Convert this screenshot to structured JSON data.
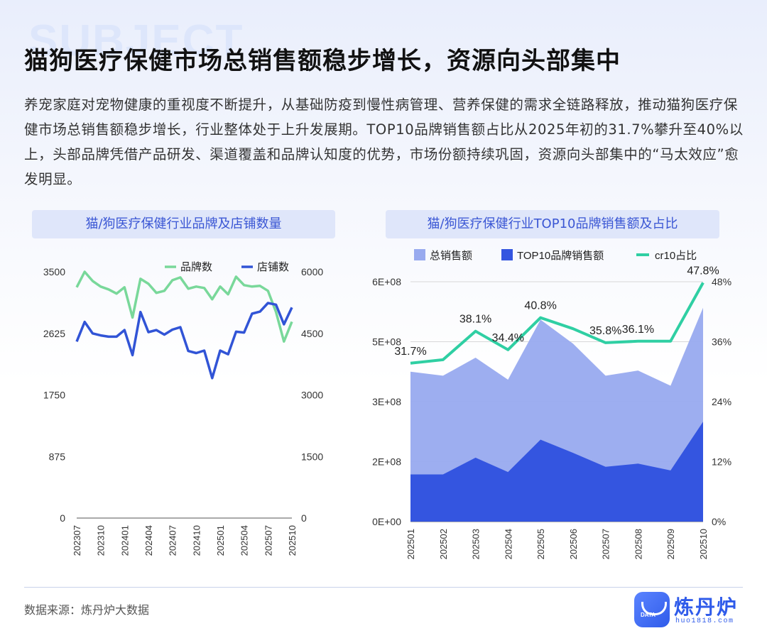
{
  "header": {
    "bg_word": "SUBJECT",
    "title": "猫狗医疗保健市场总销售额稳步增长，资源向头部集中",
    "intro": "养宠家庭对宠物健康的重视度不断提升，从基础防疫到慢性病管理、营养保健的需求全链路释放，推动猫狗医疗保健市场总销售额稳步增长，行业整体处于上升发展期。TOP10品牌销售额占比从2025年初的31.7%攀升至40%以上，头部品牌凭借产品研发、渠道覆盖和品牌认知度的优势，市场份额持续巩固，资源向头部集中的“马太效应”愈发明显。"
  },
  "footer": {
    "source": "数据来源：炼丹炉大数据",
    "logo_name": "炼丹炉",
    "logo_url": "huo1818.com",
    "logo_badge": "DATA"
  },
  "chart_data": [
    {
      "type": "line",
      "title": "猫/狗医疗保健行业品牌及店铺数量",
      "legend_position": "top-right",
      "grid": false,
      "x": [
        "202307",
        "202308",
        "202309",
        "202310",
        "202311",
        "202312",
        "202401",
        "202402",
        "202403",
        "202404",
        "202405",
        "202406",
        "202407",
        "202408",
        "202409",
        "202410",
        "202411",
        "202412",
        "202501",
        "202502",
        "202503",
        "202504",
        "202505",
        "202506",
        "202507",
        "202508",
        "202509",
        "202510"
      ],
      "x_tick_labels": [
        "202307",
        "202310",
        "202401",
        "202404",
        "202407",
        "202410",
        "202501",
        "202504",
        "202507",
        "202510"
      ],
      "y_left": {
        "ticks": [
          0,
          875,
          1750,
          2625,
          3500
        ],
        "ylim": [
          0,
          3500
        ]
      },
      "y_right": {
        "ticks": [
          0,
          1500,
          3000,
          4500,
          6000
        ],
        "ylim": [
          0,
          6000
        ]
      },
      "series": [
        {
          "name": "品牌数",
          "axis": "left",
          "color": "#79d89a",
          "values": [
            3280,
            3500,
            3370,
            3290,
            3250,
            3190,
            3280,
            2850,
            3400,
            3330,
            3200,
            3230,
            3380,
            3420,
            3260,
            3290,
            3270,
            3110,
            3290,
            3180,
            3430,
            3310,
            3290,
            3300,
            3230,
            2930,
            2510,
            2790
          ]
        },
        {
          "name": "店铺数",
          "axis": "right",
          "color": "#3154d6",
          "values": [
            4300,
            4780,
            4500,
            4450,
            4420,
            4420,
            4580,
            3970,
            5020,
            4530,
            4580,
            4470,
            4590,
            4650,
            4070,
            4020,
            4080,
            3410,
            4080,
            3990,
            4540,
            4520,
            4980,
            5030,
            5240,
            5200,
            4720,
            5130
          ]
        }
      ]
    },
    {
      "type": "area",
      "title": "猫/狗医疗保健行业TOP10品牌销售额及占比",
      "legend_position": "top",
      "grid": true,
      "x": [
        "202501",
        "202502",
        "202503",
        "202504",
        "202505",
        "202506",
        "202507",
        "202508",
        "202509",
        "202510"
      ],
      "y_left": {
        "ticks": [
          "0E+00",
          "2E+08",
          "3E+08",
          "5E+08",
          "6E+08"
        ],
        "ylim": [
          0,
          600000000
        ]
      },
      "y_right": {
        "ticks": [
          "0%",
          "12%",
          "24%",
          "36%",
          "48%"
        ],
        "ylim": [
          0,
          48
        ]
      },
      "series": [
        {
          "name": "总销售额",
          "type": "area",
          "axis": "left",
          "color": "#98aaef",
          "values": [
            375000000,
            365000000,
            410000000,
            355000000,
            505000000,
            445000000,
            365000000,
            378000000,
            340000000,
            535000000
          ]
        },
        {
          "name": "TOP10品牌销售额",
          "type": "area",
          "axis": "left",
          "color": "#3455e0",
          "values": [
            118000000,
            118000000,
            160000000,
            124000000,
            205000000,
            172000000,
            137000000,
            145000000,
            128000000,
            250000000
          ]
        },
        {
          "name": "cr10占比",
          "type": "line",
          "axis": "right",
          "color": "#2fcfa3",
          "unit": "%",
          "values": [
            31.7,
            32.4,
            38.1,
            34.4,
            40.8,
            38.6,
            35.8,
            36.1,
            36.1,
            47.8
          ],
          "labels": [
            "31.7%",
            "",
            "38.1%",
            "34.4%",
            "40.8%",
            "",
            "35.8%",
            "36.1%",
            "",
            "47.8%"
          ]
        }
      ]
    }
  ]
}
